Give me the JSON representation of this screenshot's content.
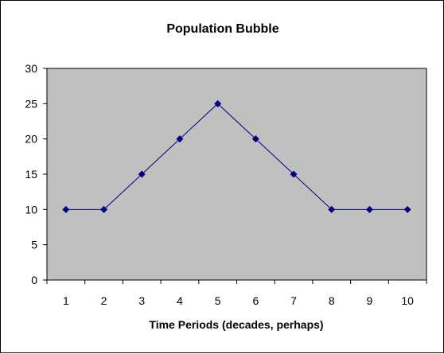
{
  "chart_data": {
    "type": "line",
    "title": "Population Bubble",
    "xlabel": "Time Periods (decades, perhaps)",
    "ylabel": "",
    "categories": [
      "1",
      "2",
      "3",
      "4",
      "5",
      "6",
      "7",
      "8",
      "9",
      "10"
    ],
    "series": [
      {
        "values": [
          10,
          10,
          15,
          20,
          25,
          20,
          15,
          10,
          10,
          10
        ]
      }
    ],
    "ylim": [
      0,
      30
    ],
    "yticks": [
      0,
      5,
      10,
      15,
      20,
      25,
      30
    ],
    "grid": false,
    "legend": "none",
    "marker": "diamond",
    "colors": {
      "plot_background": "#c0c0c0",
      "series_line": "#000080",
      "series_marker": "#000080",
      "axis": "#000000"
    }
  }
}
